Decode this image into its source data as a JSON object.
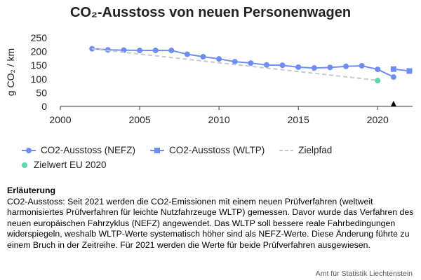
{
  "title": "CO₂-Ausstoss von neuen Personenwagen",
  "chart_data": {
    "type": "line",
    "ylabel": "g CO₂ / km",
    "xlabel": "",
    "xlim": [
      2000,
      2022.2
    ],
    "ylim": [
      0,
      250
    ],
    "x_ticks": [
      2000,
      2005,
      2010,
      2015,
      2020
    ],
    "y_ticks": [
      0,
      50,
      100,
      150,
      200,
      250
    ],
    "grid": false,
    "series": [
      {
        "name": "CO2-Ausstoss (NEFZ)",
        "marker": "circle",
        "style": "solid",
        "color": "#6d8ef0",
        "x": [
          2002,
          2003,
          2004,
          2005,
          2006,
          2007,
          2008,
          2009,
          2010,
          2011,
          2012,
          2013,
          2014,
          2015,
          2016,
          2017,
          2018,
          2019,
          2020,
          2021
        ],
        "y": [
          210,
          206,
          205,
          204,
          204,
          204,
          190,
          181,
          173,
          163,
          158,
          151,
          150,
          143,
          140,
          142,
          146,
          148,
          135,
          107
        ]
      },
      {
        "name": "CO2-Ausstoss (WLTP)",
        "marker": "square",
        "style": "solid",
        "color": "#6d8ef0",
        "x": [
          2021,
          2022
        ],
        "y": [
          136,
          129
        ]
      },
      {
        "name": "Zielpfad",
        "marker": "none",
        "style": "dashed",
        "color": "#c4c9cf",
        "x": [
          2002,
          2020
        ],
        "y": [
          210,
          95
        ]
      },
      {
        "name": "Zielwert EU 2020",
        "marker": "circle",
        "style": "point",
        "color": "#5fd6a8",
        "x": [
          2020
        ],
        "y": [
          94
        ]
      }
    ],
    "annotations": [
      {
        "type": "triangle-marker",
        "x": 2021,
        "y": 0,
        "color": "#000000"
      }
    ]
  },
  "legend": {
    "items": [
      "CO2-Ausstoss (NEFZ)",
      "CO2-Ausstoss (WLTP)",
      "Zielpfad",
      "Zielwert EU 2020"
    ]
  },
  "note": {
    "title": "Erläuterung",
    "text": "CO2-Ausstoss: Seit 2021 werden die CO2-Emissionen mit einem neuen Prüfverfahren (weltweit harmonisiertes Prüfverfahren für leichte Nutzfahrzeuge WLTP) gemessen. Davor wurde das Verfahren des neuen europäischen Fahrzyklus (NEFZ) angewendet. Das WLTP soll bessere reale Fahrbedingungen widerspiegeln, weshalb WLTP-Werte systematisch höher sind als NEFZ-Werte. Diese Änderung führte zu einem Bruch in der Zeitreihe. Für 2021 werden die Werte für beide Prüfverfahren ausgewiesen."
  },
  "source": "Amt für Statistik Liechtenstein"
}
